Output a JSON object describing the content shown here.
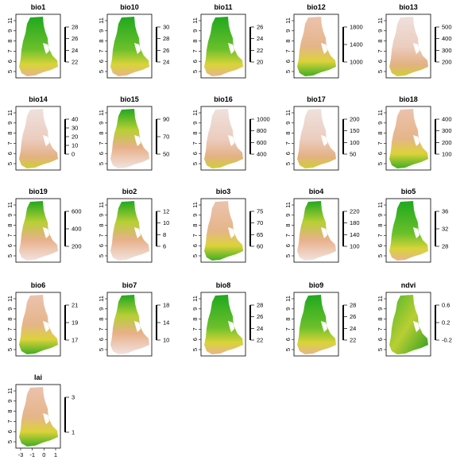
{
  "panels": [
    {
      "title": "bio1",
      "ticks": [
        28,
        26,
        24,
        22
      ],
      "ramp": "a"
    },
    {
      "title": "bio10",
      "ticks": [
        30,
        28,
        26,
        24
      ],
      "ramp": "a"
    },
    {
      "title": "bio11",
      "ticks": [
        26,
        24,
        22,
        20
      ],
      "ramp": "a"
    },
    {
      "title": "bio12",
      "ticks": [
        1800,
        1400,
        1000
      ],
      "ramp": "b"
    },
    {
      "title": "bio13",
      "ticks": [
        500,
        400,
        300,
        200
      ],
      "ramp": "c"
    },
    {
      "title": "bio14",
      "ticks": [
        40,
        30,
        20,
        10,
        0
      ],
      "ramp": "c"
    },
    {
      "title": "bio15",
      "ticks": [
        90,
        70,
        50
      ],
      "ramp": "d"
    },
    {
      "title": "bio16",
      "ticks": [
        1000,
        800,
        600,
        400
      ],
      "ramp": "c"
    },
    {
      "title": "bio17",
      "ticks": [
        200,
        150,
        100,
        50
      ],
      "ramp": "c"
    },
    {
      "title": "bio18",
      "ticks": [
        400,
        300,
        200,
        100
      ],
      "ramp": "b"
    },
    {
      "title": "bio19",
      "ticks": [
        600,
        400,
        200
      ],
      "ramp": "d"
    },
    {
      "title": "bio2",
      "ticks": [
        12,
        10,
        8,
        6
      ],
      "ramp": "d"
    },
    {
      "title": "bio3",
      "ticks": [
        75,
        70,
        65,
        60
      ],
      "ramp": "b"
    },
    {
      "title": "bio4",
      "ticks": [
        220,
        180,
        140,
        100
      ],
      "ramp": "d"
    },
    {
      "title": "bio5",
      "ticks": [
        36,
        32,
        28
      ],
      "ramp": "a"
    },
    {
      "title": "bio6",
      "ticks": [
        21,
        19,
        17
      ],
      "ramp": "b"
    },
    {
      "title": "bio7",
      "ticks": [
        18,
        14,
        10
      ],
      "ramp": "d"
    },
    {
      "title": "bio8",
      "ticks": [
        28,
        26,
        24,
        22
      ],
      "ramp": "a"
    },
    {
      "title": "bio9",
      "ticks": [
        28,
        26,
        24,
        22
      ],
      "ramp": "a"
    },
    {
      "title": "ndvi",
      "ticks": [
        0.6,
        0.2,
        -0.2
      ],
      "ramp": "e"
    },
    {
      "title": "lai",
      "ticks": [
        3,
        1
      ],
      "ramp": "b"
    }
  ],
  "y_axis_ticks": [
    11,
    9,
    8,
    7,
    6,
    5
  ],
  "x_axis_ticks": [
    -3,
    -1,
    0,
    1
  ],
  "colors": {
    "green": "#1fa81f",
    "yellow": "#dcd23a",
    "tan": "#e8b08a",
    "pale": "#f0e8e6",
    "ink": "#000000"
  }
}
